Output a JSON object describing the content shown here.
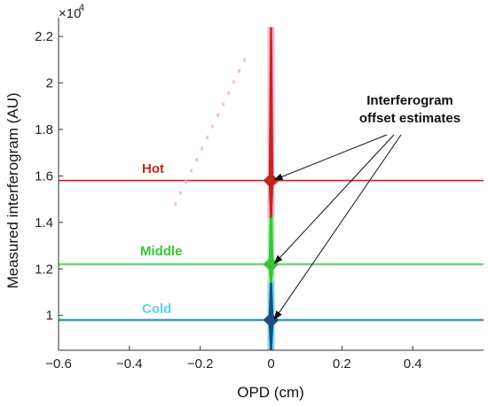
{
  "chart_data": {
    "type": "line",
    "xlabel": "OPD (cm)",
    "ylabel": "Measured interferogram (AU)",
    "xlim": [
      -0.6,
      0.6
    ],
    "ylim": [
      8500,
      22500
    ],
    "xticks": [
      -0.6,
      -0.4,
      -0.2,
      0,
      0.2,
      0.4
    ],
    "xtick_labels": [
      "−0.6",
      "−0.4",
      "−0.2",
      "0",
      "0.2",
      "0.4"
    ],
    "yticks": [
      10000,
      12000,
      14000,
      16000,
      18000,
      20000,
      22000
    ],
    "ytick_labels": [
      "1",
      "1.2",
      "1.4",
      "1.6",
      "1.8",
      "2",
      "2.2"
    ],
    "y_exponent_label": "×10",
    "y_exponent_power": "4",
    "grid": false,
    "series": [
      {
        "name": "Hot",
        "color": "#c0281e",
        "glow": "#f4a6c9",
        "offset": 15800,
        "burst_top": 22400,
        "burst_bottom": 14200
      },
      {
        "name": "Middle",
        "color": "#3bc43b",
        "glow": "#a8ecb0",
        "offset": 12200,
        "burst_top": 15200,
        "burst_bottom": 11400
      },
      {
        "name": "Cold",
        "color": "#1a4f80",
        "glow": "#5fd3ee",
        "offset": 9800,
        "burst_top": 11500,
        "burst_bottom": 8500
      }
    ],
    "annotation": {
      "lines": [
        "Interferogram",
        "offset estimates"
      ]
    }
  }
}
